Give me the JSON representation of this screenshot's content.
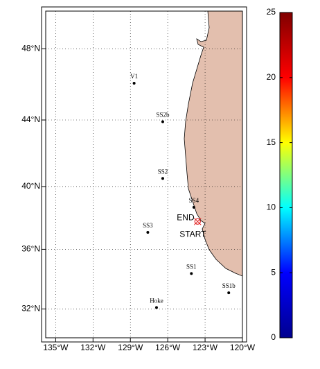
{
  "chart_data": {
    "type": "map",
    "projection": "mercator",
    "xlim": [
      -135.8,
      -120
    ],
    "ylim": [
      30,
      50
    ],
    "xticks": [
      {
        "value": -135,
        "label": "135°W"
      },
      {
        "value": -132,
        "label": "132°W"
      },
      {
        "value": -129,
        "label": "129°W"
      },
      {
        "value": -126,
        "label": "126°W"
      },
      {
        "value": -123,
        "label": "123°W"
      },
      {
        "value": -120,
        "label": "120°W"
      }
    ],
    "yticks": [
      {
        "value": 32,
        "label": "32°N"
      },
      {
        "value": 36,
        "label": "36°N"
      },
      {
        "value": 40,
        "label": "40°N"
      },
      {
        "value": 44,
        "label": "44°N"
      },
      {
        "value": 48,
        "label": "48°N"
      }
    ],
    "grid": true,
    "land_color": "#e3bfae",
    "stations": [
      {
        "name": "V1",
        "lon": -128.7,
        "lat": 46.1
      },
      {
        "name": "SS2b",
        "lon": -126.4,
        "lat": 43.9
      },
      {
        "name": "SS2",
        "lon": -126.4,
        "lat": 40.5
      },
      {
        "name": "SS4",
        "lon": -123.9,
        "lat": 38.7
      },
      {
        "name": "SS3",
        "lon": -127.6,
        "lat": 37.1
      },
      {
        "name": "SS1",
        "lon": -124.1,
        "lat": 34.4
      },
      {
        "name": "SS1b",
        "lon": -121.1,
        "lat": 33.1
      },
      {
        "name": "Hoke",
        "lon": -126.9,
        "lat": 32.1
      }
    ],
    "track": {
      "end_label": "END",
      "start_label": "START",
      "lon": -123.6,
      "lat": 37.8,
      "color": "#e02020"
    },
    "colorbar": {
      "lim": [
        0,
        25
      ],
      "ticks": [
        0,
        5,
        10,
        15,
        20,
        25
      ],
      "colors": [
        "#00008f",
        "#0000ff",
        "#00ffff",
        "#ffff00",
        "#ff0000",
        "#800000"
      ]
    }
  }
}
